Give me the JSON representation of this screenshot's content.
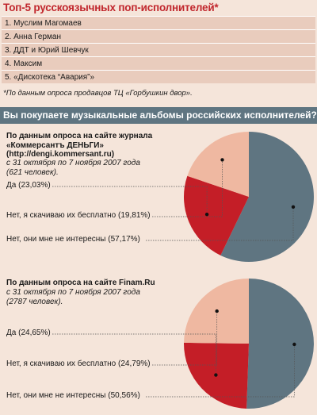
{
  "title": "Топ-5 русскоязычных поп-исполнителей*",
  "top5": [
    "1. Муслим Магомаев",
    "2. Анна Герман",
    "3. ДДТ и Юрий Шевчук",
    "4. Максим",
    "5. «Дискотека “Авария”»"
  ],
  "top5_note": "*По данным опроса продавцов ТЦ «Горбушкин двор».",
  "banner": "Вы покупаете музыкальные альбомы российских исполнителей?",
  "survey1": {
    "heading_lines": [
      "По данным опроса на сайте журнала",
      "«Коммерсантъ ДЕНЬГИ»",
      "(http://dengi.kommersant.ru)"
    ],
    "sub_lines": [
      "с 31 октября по 7 ноября 2007 года",
      "(621 человек)."
    ]
  },
  "survey2": {
    "heading_lines": [
      "По данным опроса на сайте Finam.Ru"
    ],
    "sub_lines": [
      "с 31 октября по 7 ноября 2007 года",
      "(2787 человек)."
    ]
  },
  "colors": {
    "yes": "#c41e27",
    "free": "#efb8a1",
    "no": "#5f7581",
    "accent": "#c1272d"
  },
  "chart_data": [
    {
      "type": "pie",
      "categories": [
        "Да",
        "Нет, я скачиваю их бесплатно",
        "Нет, они мне не интересны"
      ],
      "values": [
        23.03,
        19.81,
        57.17
      ],
      "labels": [
        "Да (23,03%)",
        "Нет, я скачиваю их бесплатно (19,81%)",
        "Нет, они мне не интересны (57,17%)"
      ]
    },
    {
      "type": "pie",
      "categories": [
        "Да",
        "Нет, я скачиваю их бесплатно",
        "Нет, они мне не интересны"
      ],
      "values": [
        24.65,
        24.79,
        50.56
      ],
      "labels": [
        "Да (24,65%)",
        "Нет, я скачиваю их бесплатно (24,79%)",
        "Нет, они мне не интересны (50,56%)"
      ]
    }
  ]
}
